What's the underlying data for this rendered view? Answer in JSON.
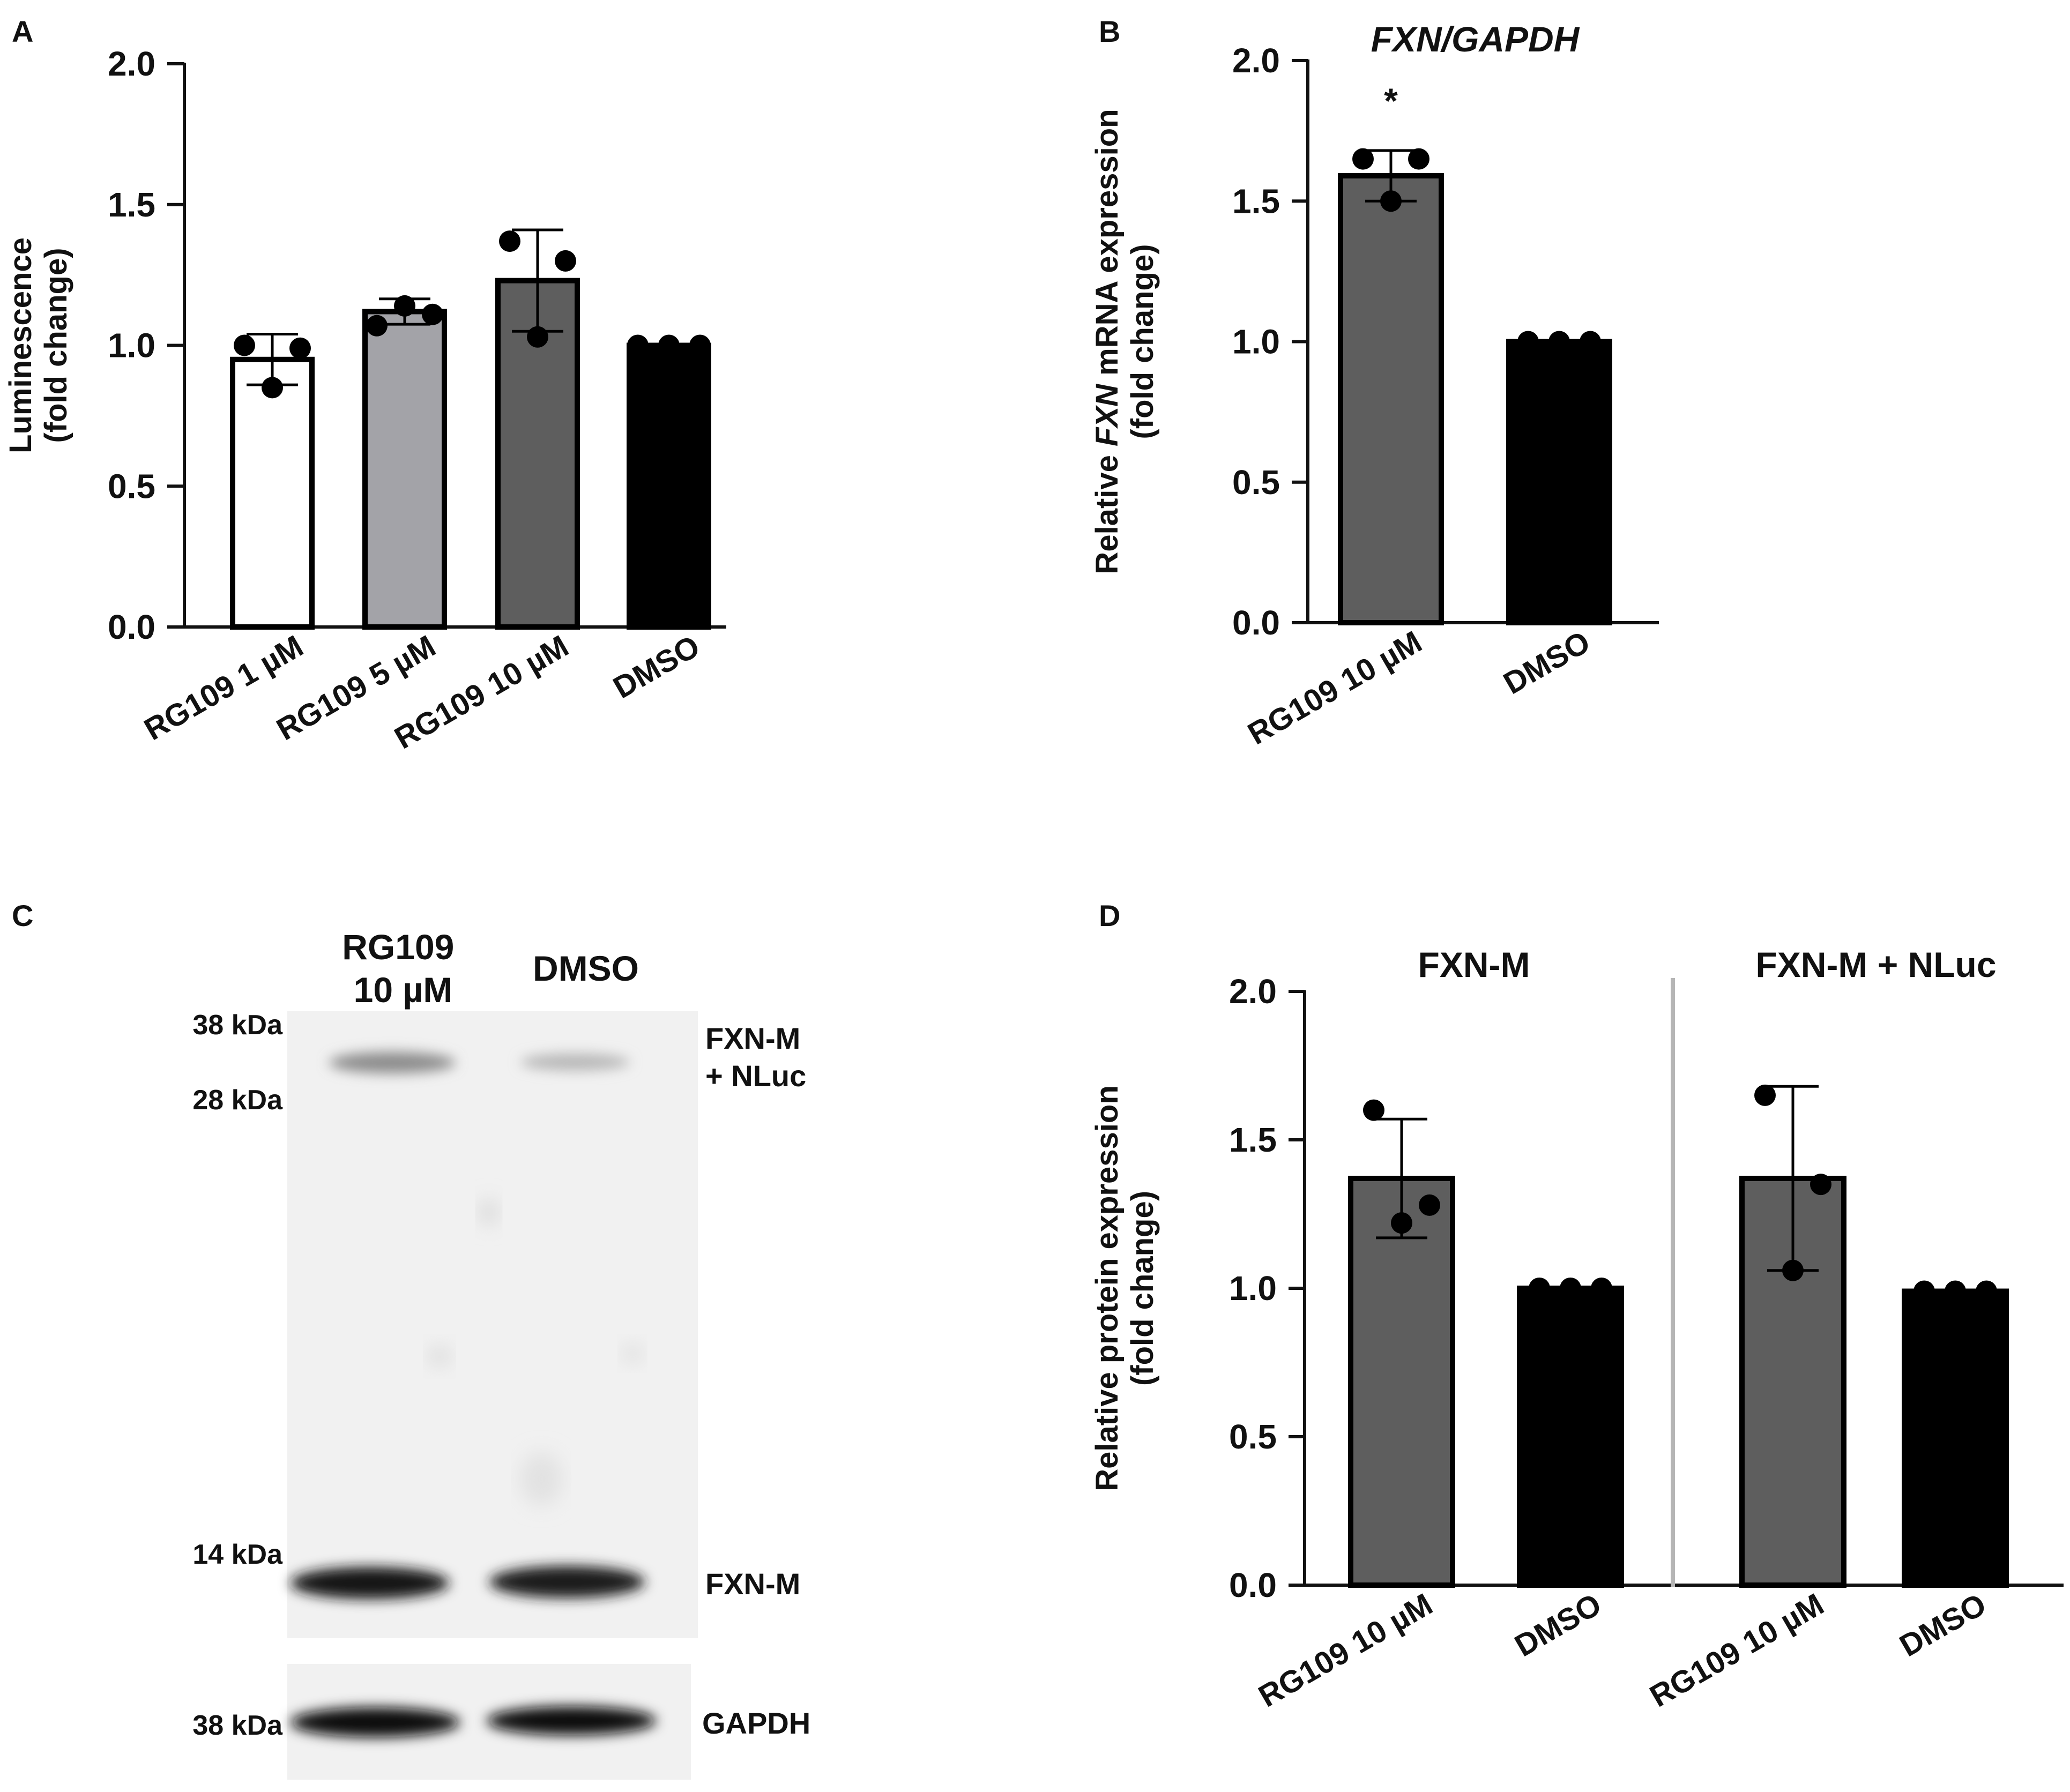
{
  "panels": {
    "a": "A",
    "b": "B",
    "c": "C",
    "d": "D"
  },
  "colors": {
    "white_bar": "#ffffff",
    "light_gray_bar": "#a3a3a8",
    "dark_gray_bar": "#5e5e5e",
    "black_bar": "#000000",
    "divider": "#b5b5b5",
    "blot_background": "#f1f1f1",
    "band": "#161616"
  },
  "chart_data": [
    {
      "id": "A",
      "type": "bar",
      "title": "",
      "xlabel": "",
      "ylabel_lines": [
        "Luminescence",
        "(fold change)"
      ],
      "ylim": [
        0,
        2
      ],
      "yticks": [
        "0.0",
        "0.5",
        "1.0",
        "1.5",
        "2.0"
      ],
      "categories": [
        "RG109 1 µM",
        "RG109 5 µM",
        "RG109 10 µM",
        "DMSO"
      ],
      "values": [
        0.95,
        1.12,
        1.23,
        1.0
      ],
      "errors": [
        0.09,
        0.045,
        0.18,
        0
      ],
      "points": [
        [
          1.0,
          0.99,
          0.85
        ],
        [
          1.07,
          1.11,
          1.14
        ],
        [
          1.37,
          1.3,
          1.03
        ],
        [
          1.0,
          1.0,
          1.0
        ]
      ],
      "fills": [
        "white_bar",
        "light_gray_bar",
        "dark_gray_bar",
        "black_bar"
      ],
      "annotations": []
    },
    {
      "id": "B",
      "type": "bar",
      "title": "FXN/GAPDH",
      "xlabel": "",
      "ylabel_lines": [
        "Relative FXN mRNA expression",
        "(fold change)"
      ],
      "ylabel_italic_word": "FXN",
      "ylim": [
        0,
        2
      ],
      "yticks": [
        "0.0",
        "0.5",
        "1.0",
        "1.5",
        "2.0"
      ],
      "categories": [
        "RG109 10 µM",
        "DMSO"
      ],
      "values": [
        1.59,
        1.0
      ],
      "errors": [
        0.09,
        0
      ],
      "points": [
        [
          1.65,
          1.65,
          1.5
        ],
        [
          1.0,
          1.0,
          1.0
        ]
      ],
      "fills": [
        "dark_gray_bar",
        "black_bar"
      ],
      "annotations": [
        {
          "category": 0,
          "text": "*"
        }
      ]
    },
    {
      "id": "D",
      "type": "bar",
      "title": "",
      "xlabel": "",
      "ylabel_lines": [
        "Relative protein expression",
        "(fold change)"
      ],
      "ylim": [
        0,
        2
      ],
      "yticks": [
        "0.0",
        "0.5",
        "1.0",
        "1.5",
        "2.0"
      ],
      "groups": [
        "FXN-M",
        "FXN-M + NLuc"
      ],
      "categories": [
        "RG109 10 µM",
        "DMSO",
        "RG109 10 µM",
        "DMSO"
      ],
      "values": [
        1.37,
        1.0,
        1.37,
        0.99
      ],
      "errors": [
        0.2,
        0,
        0.31,
        0
      ],
      "points": [
        [
          1.6,
          1.28,
          1.22
        ],
        [
          1.0,
          1.0,
          1.0
        ],
        [
          1.65,
          1.35,
          1.06
        ],
        [
          0.99,
          0.99,
          0.99
        ]
      ],
      "fills": [
        "dark_gray_bar",
        "black_bar",
        "dark_gray_bar",
        "black_bar"
      ],
      "annotations": []
    }
  ],
  "blot": {
    "lanes": [
      [
        "RG109",
        "10 µM"
      ],
      [
        "DMSO"
      ]
    ],
    "markers_main": [
      "38 kDa",
      "28 kDa",
      "14 kDa"
    ],
    "marker_gapdh": "38 kDa",
    "band_labels": {
      "fxn_nluc": [
        "FXN-M",
        "+ NLuc"
      ],
      "fxn_m": "FXN-M",
      "gapdh": "GAPDH"
    }
  }
}
